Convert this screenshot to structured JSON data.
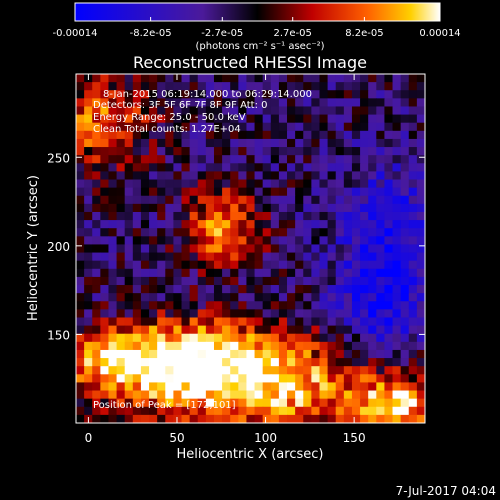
{
  "chart_data": {
    "type": "heatmap",
    "title": "Reconstructed RHESSI Image",
    "xlabel": "Heliocentric X (arcsec)",
    "ylabel": "Heliocentric Y (arcsec)",
    "xlim": [
      -7,
      190
    ],
    "ylim": [
      100,
      297
    ],
    "x_ticks": [
      0,
      50,
      100,
      150
    ],
    "y_ticks": [
      150,
      200,
      250
    ],
    "colorbar": {
      "unit_label": "(photons cm⁻² s⁻¹ asec⁻²)",
      "range": [
        -0.00014,
        0.00014
      ],
      "ticks": [
        {
          "value": -0.00014,
          "label": "-0.00014"
        },
        {
          "value": -8.2e-05,
          "label": "-8.2e-05"
        },
        {
          "value": -2.7e-05,
          "label": "-2.7e-05"
        },
        {
          "value": 2.7e-05,
          "label": "2.7e-05"
        },
        {
          "value": 8.2e-05,
          "label": "8.2e-05"
        },
        {
          "value": 0.00014,
          "label": "0.00014"
        }
      ]
    },
    "annotations": {
      "time_range": "8-Jan-2015 06:19:14.000 to 06:29:14.000",
      "detectors": "Detectors: 3F 5F 6F 7F 8F 9F  Att: 0",
      "energy_range": "Energy Range: 25.0 - 50.0 keV",
      "method": "Clean     Total counts: 1.27E+04",
      "peak": "Position of Peak = [172,101]"
    },
    "peak": [
      172,
      101
    ],
    "grid": {
      "cols": 43,
      "rows": 43
    },
    "bright_regions": [
      {
        "x": 95,
        "y": 120,
        "sx": 55,
        "sy": 18,
        "amp": 1.0
      },
      {
        "x": 60,
        "y": 140,
        "sx": 35,
        "sy": 14,
        "amp": 0.8
      },
      {
        "x": 15,
        "y": 135,
        "sx": 25,
        "sy": 12,
        "amp": 0.6
      },
      {
        "x": 75,
        "y": 210,
        "sx": 15,
        "sy": 15,
        "amp": 0.85
      },
      {
        "x": 5,
        "y": 270,
        "sx": 22,
        "sy": 18,
        "amp": 0.7
      },
      {
        "x": 175,
        "y": 110,
        "sx": 14,
        "sy": 10,
        "amp": 0.9
      }
    ],
    "dim_regions": [
      {
        "x": 170,
        "y": 205,
        "sx": 20,
        "sy": 30,
        "amp": 0.9
      },
      {
        "x": 165,
        "y": 160,
        "sx": 18,
        "sy": 20,
        "amp": 0.6
      }
    ]
  },
  "footer": {
    "date": "7-Jul-2017 04:04"
  }
}
